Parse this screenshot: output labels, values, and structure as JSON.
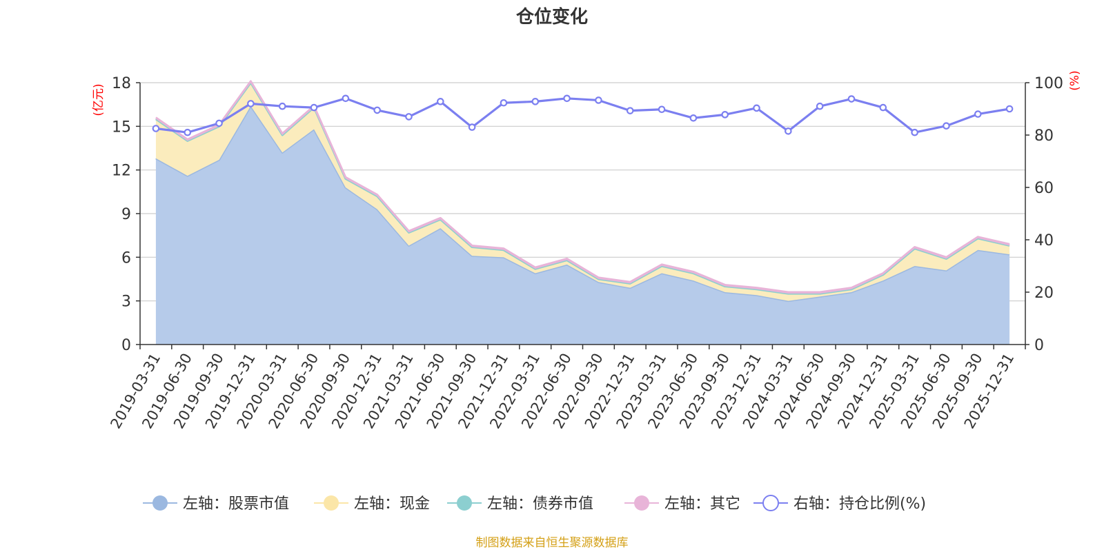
{
  "chart_data": {
    "type": "area",
    "title": "仓位变化",
    "source_note": "制图数据来自恒生聚源数据库",
    "left_axis": {
      "unit": "(亿元)",
      "min": 0,
      "max": 18,
      "ticks": [
        "0",
        "3",
        "6",
        "9",
        "12",
        "15",
        "18"
      ]
    },
    "right_axis": {
      "unit": "(%)",
      "min": 0,
      "max": 100,
      "ticks": [
        "0",
        "20",
        "40",
        "60",
        "80",
        "100"
      ]
    },
    "categories": [
      "2019-03-31",
      "2019-06-30",
      "2019-09-30",
      "2019-12-31",
      "2020-03-31",
      "2020-06-30",
      "2020-09-30",
      "2020-12-31",
      "2021-03-31",
      "2021-06-30",
      "2021-09-30",
      "2021-12-31",
      "2022-03-31",
      "2022-06-30",
      "2022-09-30",
      "2022-12-31",
      "2023-03-31",
      "2023-06-30",
      "2023-09-30",
      "2023-12-31",
      "2024-03-31",
      "2024-06-30",
      "2024-09-30",
      "2024-12-31",
      "2025-03-31",
      "2025-06-30",
      "2025-09-30",
      "2025-12-31"
    ],
    "series": [
      {
        "name": "左轴：股票市值",
        "axis": "left",
        "kind": "stacked-area",
        "color": "#9bb8e0",
        "fill": "#b6cbea",
        "values": [
          12.8,
          11.6,
          12.7,
          16.4,
          13.2,
          14.8,
          10.8,
          9.3,
          6.8,
          8.0,
          6.1,
          6.0,
          4.9,
          5.5,
          4.3,
          3.9,
          4.9,
          4.4,
          3.6,
          3.4,
          3.0,
          3.3,
          3.6,
          4.4,
          5.4,
          5.1,
          6.5,
          6.2
        ]
      },
      {
        "name": "左轴：现金",
        "axis": "left",
        "kind": "stacked-area",
        "color": "#fbe6a8",
        "fill": "#fbecbd",
        "values": [
          2.7,
          2.4,
          2.3,
          1.6,
          1.2,
          1.5,
          0.6,
          0.9,
          0.9,
          0.6,
          0.6,
          0.5,
          0.3,
          0.3,
          0.2,
          0.3,
          0.5,
          0.5,
          0.4,
          0.4,
          0.5,
          0.2,
          0.2,
          0.4,
          1.2,
          0.8,
          0.8,
          0.6
        ]
      },
      {
        "name": "左轴：债券市值",
        "axis": "left",
        "kind": "stacked-area",
        "color": "#8ccfd0",
        "fill": "#8ccfd0",
        "values": [
          0,
          0,
          0,
          0,
          0,
          0,
          0,
          0,
          0,
          0,
          0,
          0,
          0,
          0,
          0,
          0,
          0,
          0,
          0,
          0,
          0,
          0,
          0,
          0,
          0,
          0,
          0,
          0
        ]
      },
      {
        "name": "左轴：其它",
        "axis": "left",
        "kind": "stacked-area",
        "color": "#e8b4d8",
        "fill": "#e8b4d8",
        "values": [
          0.1,
          0.1,
          0.1,
          0.1,
          0.1,
          0.1,
          0.1,
          0.1,
          0.1,
          0.1,
          0.1,
          0.1,
          0.1,
          0.1,
          0.1,
          0.1,
          0.1,
          0.1,
          0.1,
          0.1,
          0.1,
          0.1,
          0.1,
          0.1,
          0.1,
          0.1,
          0.1,
          0.1
        ]
      },
      {
        "name": "右轴：持仓比例(%)",
        "axis": "right",
        "kind": "line",
        "color": "#7b7ff0",
        "values": [
          82.5,
          81.0,
          84.5,
          92.0,
          91.0,
          90.5,
          94.0,
          89.5,
          87.0,
          92.8,
          83.0,
          92.3,
          92.8,
          94.0,
          93.3,
          89.3,
          89.8,
          86.5,
          87.8,
          90.3,
          81.5,
          91.0,
          93.8,
          90.5,
          81.0,
          83.5,
          88.0,
          90.0
        ]
      }
    ],
    "colors": {
      "title": "#333333",
      "axis_unit": "#ff0000",
      "source_note": "#d4a017",
      "grid": "#cccccc",
      "axis_line": "#333333"
    }
  }
}
